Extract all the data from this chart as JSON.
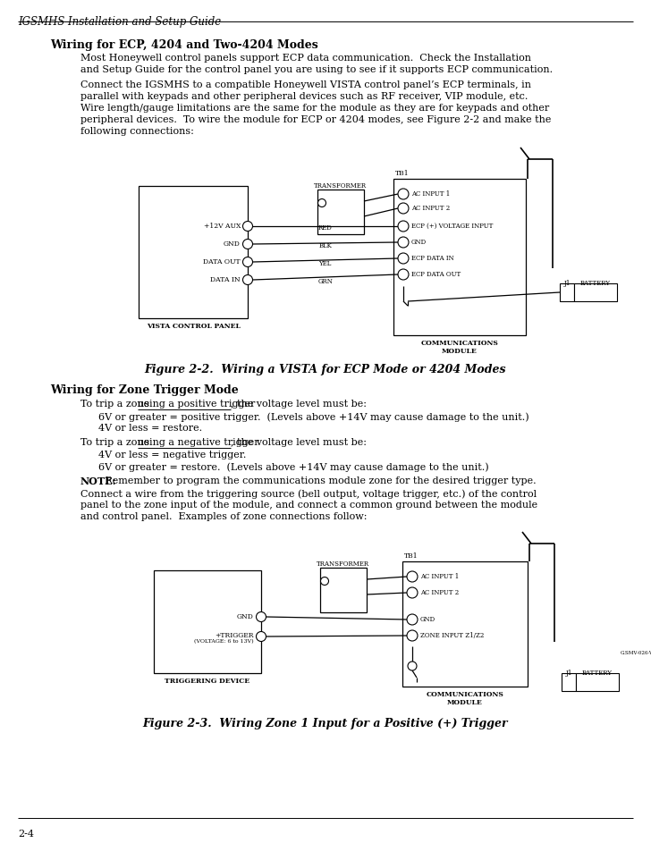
{
  "page_header": "IGSMHS Installation and Setup Guide",
  "page_number": "2-4",
  "section1_title": "Wiring for ECP, 4204 and Two-4204 Modes",
  "section1_para1": [
    "Most Honeywell control panels support ECP data communication.  Check the Installation",
    "and Setup Guide for the control panel you are using to see if it supports ECP communication."
  ],
  "section1_para2": [
    "Connect the IGSMHS to a compatible Honeywell VISTA control panel’s ECP terminals, in",
    "parallel with keypads and other peripheral devices such as RF receiver, VIP module, etc.",
    "Wire length/gauge limitations are the same for the module as they are for keypads and other",
    "peripheral devices.  To wire the module for ECP or 4204 modes, see Figure 2-2 and make the",
    "following connections:"
  ],
  "fig1_caption": "Figure 2-2.  Wiring a VISTA for ECP Mode or 4204 Modes",
  "section2_title": "Wiring for Zone Trigger Mode",
  "s2_line1a": "To trip a zone ",
  "s2_line1b": "using a positive trigger",
  "s2_line1c": ", the voltage level must be:",
  "s2_line2": "6V or greater = positive trigger.  (Levels above +14V may cause damage to the unit.)",
  "s2_line3": "4V or less = restore.",
  "s2_line4a": "To trip a zone ",
  "s2_line4b": "using a negative trigger",
  "s2_line4c": ", the voltage level must be:",
  "s2_line5": "4V or less = negative trigger.",
  "s2_line6": "6V or greater = restore.  (Levels above +14V may cause damage to the unit.)",
  "s2_note_bold": "NOTE:",
  "s2_note_rest": " Remember to program the communications module zone for the desired trigger type.",
  "s2_para2": [
    "Connect a wire from the triggering source (bell output, voltage trigger, etc.) of the control",
    "panel to the zone input of the module, and connect a common ground between the module",
    "and control panel.  Examples of zone connections follow:"
  ],
  "fig2_caption": "Figure 2-3.  Wiring Zone 1 Input for a Positive (+) Trigger",
  "bg_color": "#ffffff"
}
